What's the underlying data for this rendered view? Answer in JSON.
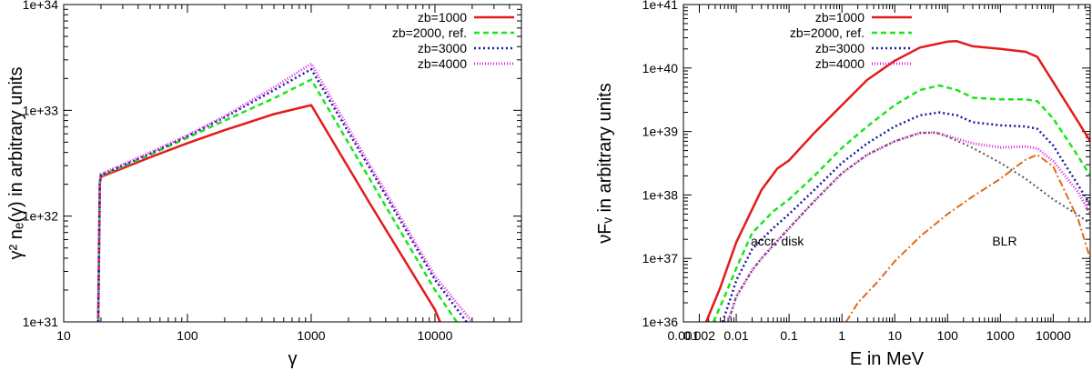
{
  "chart_data": [
    {
      "type": "line",
      "xscale": "log",
      "yscale": "log",
      "xlim": [
        10,
        50000
      ],
      "ylim": [
        1e+31,
        1e+34
      ],
      "xticks": [
        10,
        100,
        1000,
        10000
      ],
      "xtick_labels": [
        "10",
        "100",
        "1000",
        "10000"
      ],
      "yticks": [
        1e+31,
        1e+32,
        1e+33,
        1e+34
      ],
      "ytick_labels": [
        "1e+31",
        "1e+32",
        "1e+33",
        "1e+34"
      ],
      "xlabel": "γ",
      "ylabel": "γ² nₑ(γ) in arbitrary units",
      "legend_position": "top-right",
      "series": [
        {
          "name": "zb=1000",
          "color": "#e41a1c",
          "dash": "",
          "width": 2.5,
          "x": [
            19,
            19.6,
            20,
            50,
            100,
            200,
            500,
            1000,
            3000,
            10000,
            11000
          ],
          "y": [
            1e+31,
            2e+32,
            2.35e+32,
            3.6e+32,
            4.9e+32,
            6.5e+32,
            9.2e+32,
            1.12e+33,
            1.3e+32,
            1.3e+31,
            1e+31
          ]
        },
        {
          "name": "zb=2000, ref.",
          "color": "#19e619",
          "dash": "6,4",
          "width": 2.5,
          "x": [
            19,
            19.6,
            20,
            50,
            100,
            200,
            500,
            1000,
            3000,
            10000,
            15000
          ],
          "y": [
            1e+31,
            2.05e+32,
            2.4e+32,
            3.8e+32,
            5.5e+32,
            8e+32,
            1.3e+33,
            1.95e+33,
            2.2e+32,
            2e+31,
            1e+31
          ]
        },
        {
          "name": "zb=3000",
          "color": "#1a1aa0",
          "dash": "2,3",
          "width": 2.5,
          "x": [
            19,
            19.6,
            20,
            50,
            100,
            200,
            500,
            1000,
            3000,
            10000,
            18000
          ],
          "y": [
            1e+31,
            2.1e+32,
            2.45e+32,
            3.9e+32,
            5.7e+32,
            8.6e+32,
            1.55e+33,
            2.45e+33,
            2.8e+32,
            2.5e+31,
            1e+31
          ]
        },
        {
          "name": "zb=4000",
          "color": "#e020e0",
          "dash": "1,2",
          "width": 3,
          "x": [
            19,
            19.6,
            20,
            50,
            100,
            200,
            500,
            1000,
            3000,
            10000,
            20000
          ],
          "y": [
            1e+31,
            2.15e+32,
            2.5e+32,
            4e+32,
            5.8e+32,
            8.8e+32,
            1.65e+33,
            2.75e+33,
            3e+32,
            2.7e+31,
            1e+31
          ]
        }
      ]
    },
    {
      "type": "line",
      "xscale": "log",
      "yscale": "log",
      "xlim": [
        0.001,
        50000
      ],
      "ylim": [
        1e+36,
        1e+41
      ],
      "xticks": [
        0.001,
        0.002,
        0.01,
        0.1,
        1,
        10,
        100,
        1000,
        10000
      ],
      "xtick_labels": [
        "0.001",
        "0.002",
        "0.01",
        "0.1",
        "1",
        "10",
        "100",
        "1000",
        "10000"
      ],
      "yticks": [
        1e+36,
        1e+37,
        1e+38,
        1e+39,
        1e+40,
        1e+41
      ],
      "ytick_labels": [
        "1e+36",
        "1e+37",
        "1e+38",
        "1e+39",
        "1e+40",
        "1e+41"
      ],
      "xlabel": "E in MeV",
      "ylabel": "νFᵥ in arbitrary units",
      "legend_position": "top-left",
      "annotations": [
        {
          "text": "accr. disk",
          "x": 0.06,
          "y": 1.6e+37
        },
        {
          "text": "BLR",
          "x": 1200,
          "y": 1.6e+37
        }
      ],
      "series": [
        {
          "name": "zb=1000",
          "color": "#e41a1c",
          "dash": "",
          "width": 2.5,
          "x": [
            0.0027,
            0.005,
            0.01,
            0.03,
            0.06,
            0.1,
            0.3,
            1,
            3,
            10,
            30,
            100,
            150,
            300,
            1000,
            3000,
            5000,
            10000,
            30000,
            50000
          ],
          "y": [
            1e+36,
            3.5e+36,
            1.8e+37,
            1.2e+38,
            2.6e+38,
            3.5e+38,
            9.5e+38,
            2.6e+39,
            6.5e+39,
            1.3e+40,
            2.1e+40,
            2.6e+40,
            2.65e+40,
            2.2e+40,
            2e+40,
            1.8e+40,
            1.5e+40,
            6e+39,
            1.4e+39,
            7e+38
          ]
        },
        {
          "name": "zb=2000, ref.",
          "color": "#19e619",
          "dash": "6,4",
          "width": 2.5,
          "x": [
            0.0037,
            0.006,
            0.01,
            0.02,
            0.05,
            0.1,
            0.3,
            1,
            3,
            10,
            30,
            70,
            150,
            300,
            1000,
            3000,
            5000,
            10000,
            30000,
            50000
          ],
          "y": [
            1e+36,
            2.5e+36,
            7e+36,
            2.5e+37,
            5.5e+37,
            8.5e+37,
            2e+38,
            5.5e+38,
            1.2e+39,
            2.6e+39,
            4.5e+39,
            5.3e+39,
            4.5e+39,
            3.4e+39,
            3.2e+39,
            3.2e+39,
            3e+39,
            1.6e+39,
            4e+38,
            2e+38
          ]
        },
        {
          "name": "zb=3000",
          "color": "#1a1aa0",
          "dash": "2,3",
          "width": 2.5,
          "x": [
            0.0055,
            0.008,
            0.01,
            0.02,
            0.05,
            0.1,
            0.3,
            1,
            3,
            10,
            30,
            70,
            150,
            300,
            1000,
            3000,
            5000,
            10000,
            30000,
            50000
          ],
          "y": [
            1e+36,
            2.5e+36,
            4.5e+36,
            1.4e+37,
            3e+37,
            5e+37,
            1.2e+38,
            3.2e+38,
            6.5e+38,
            1.2e+39,
            1.8e+39,
            2e+39,
            1.8e+39,
            1.4e+39,
            1.25e+39,
            1.2e+39,
            1.1e+39,
            6e+38,
            1.4e+38,
            7e+37
          ]
        },
        {
          "name": "zb=4000",
          "color": "#e020e0",
          "dash": "1,2",
          "width": 3,
          "x": [
            0.007,
            0.01,
            0.02,
            0.03,
            0.05,
            0.1,
            0.3,
            1,
            3,
            10,
            30,
            60,
            100,
            300,
            1000,
            3000,
            5000,
            10000,
            30000,
            50000
          ],
          "y": [
            1e+36,
            2.5e+36,
            6.5e+36,
            1e+37,
            1.6e+37,
            3e+37,
            8e+37,
            2.2e+38,
            4.3e+38,
            7e+38,
            9.5e+38,
            9.6e+38,
            8.5e+38,
            6.5e+38,
            5.6e+38,
            5.8e+38,
            5.4e+38,
            3.4e+38,
            1.1e+38,
            5e+37
          ]
        },
        {
          "name": "",
          "color": "#555555",
          "dash": "2,3",
          "width": 2,
          "x": [
            0.007,
            0.01,
            0.02,
            0.03,
            0.05,
            0.1,
            0.3,
            1,
            3,
            10,
            30,
            60,
            100,
            300,
            1000,
            3000,
            10000,
            30000,
            50000
          ],
          "y": [
            1e+36,
            2.5e+36,
            6.5e+36,
            1e+37,
            1.6e+37,
            3e+37,
            8e+37,
            2.2e+38,
            4.3e+38,
            7e+38,
            9.5e+38,
            9.6e+38,
            8.3e+38,
            5.5e+38,
            3.2e+38,
            1.8e+38,
            8.5e+37,
            4.8e+37,
            3.5e+37
          ]
        },
        {
          "name": "",
          "color": "#e06a1a",
          "dash": "8,3,2,3",
          "width": 2,
          "x": [
            1.2,
            2,
            5,
            10,
            30,
            100,
            300,
            1000,
            2000,
            3000,
            5000,
            10000,
            30000,
            50000
          ],
          "y": [
            1e+36,
            2e+36,
            4.5e+36,
            9e+36,
            2.2e+37,
            5e+37,
            9.5e+37,
            1.8e+38,
            2.8e+38,
            3.6e+38,
            4.3e+38,
            2.8e+38,
            4e+37,
            1e+37
          ]
        }
      ]
    }
  ]
}
